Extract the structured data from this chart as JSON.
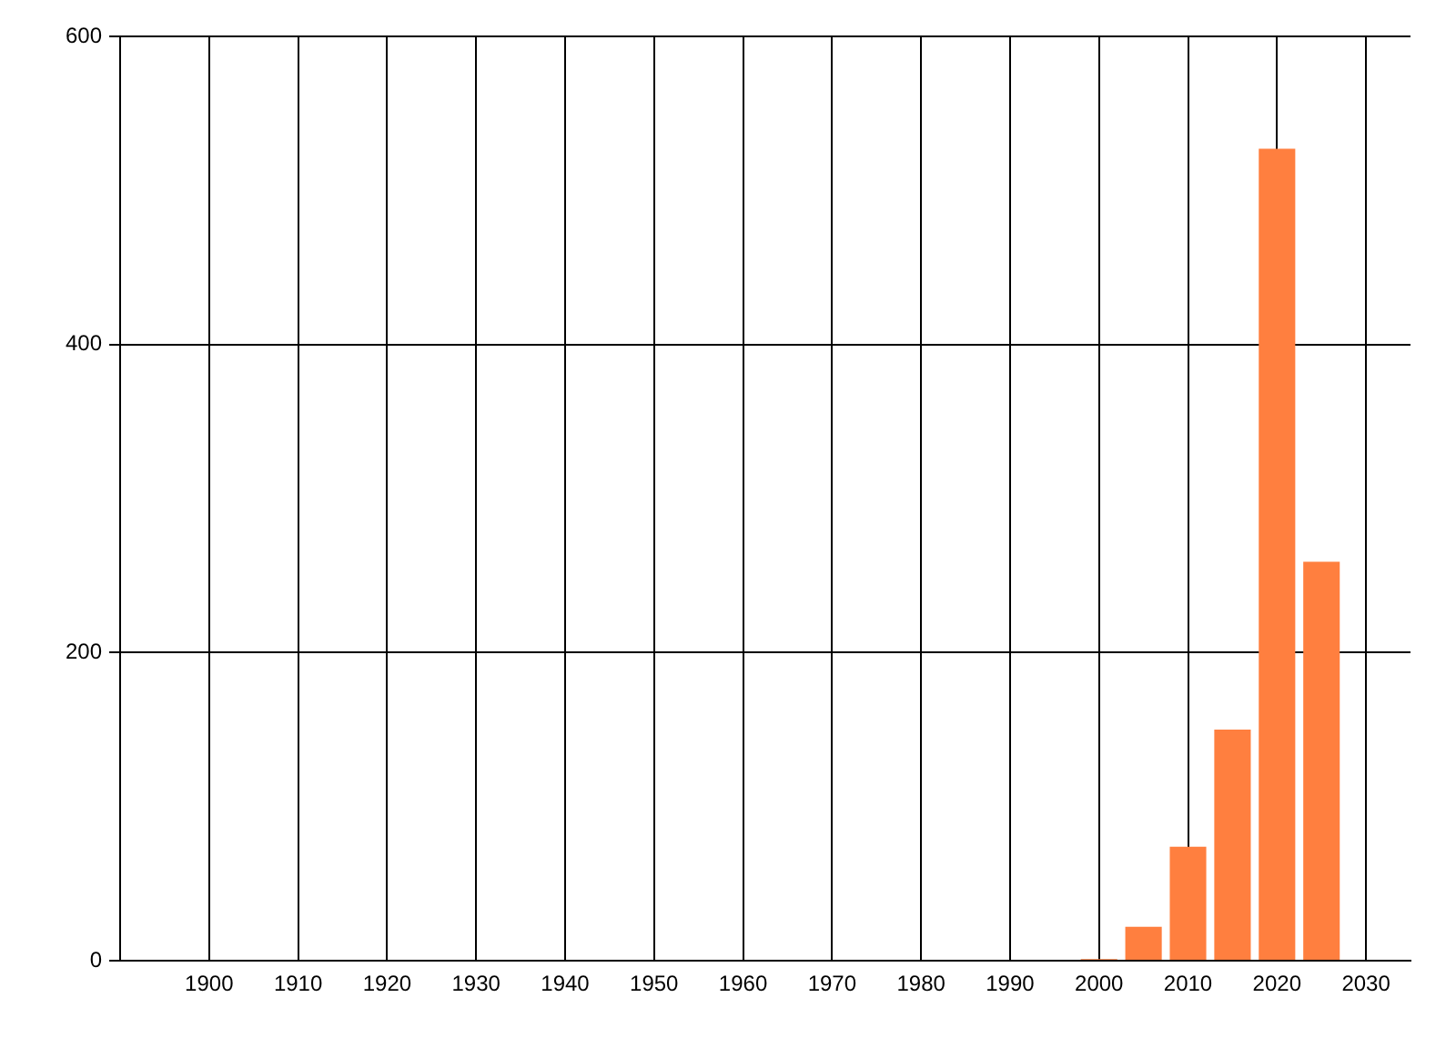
{
  "chart_data": {
    "type": "bar",
    "x": [
      2000,
      2005,
      2010,
      2015,
      2020,
      2025
    ],
    "values": [
      1,
      22,
      74,
      150,
      527,
      259
    ],
    "color": "#ff7f3f",
    "xlim": [
      1890,
      2035
    ],
    "xticks": [
      1900,
      1910,
      1920,
      1930,
      1940,
      1950,
      1960,
      1970,
      1980,
      1990,
      2000,
      2010,
      2020,
      2030
    ],
    "ylim": [
      0,
      600
    ],
    "yticks": [
      0,
      200,
      400,
      600
    ],
    "grid": true,
    "legend": false
  }
}
